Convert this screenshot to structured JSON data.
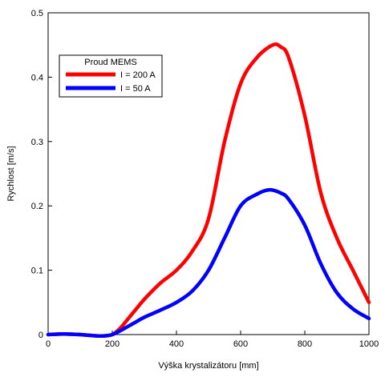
{
  "chart_data": {
    "type": "line",
    "xlabel": "Výška krystalizátoru [mm]",
    "ylabel": "Rychlost [m/s]",
    "xlim": [
      0,
      1000
    ],
    "ylim": [
      0,
      0.5
    ],
    "xticks": [
      0,
      200,
      400,
      600,
      800,
      1000
    ],
    "yticks": [
      0,
      0.1,
      0.2,
      0.3,
      0.4,
      0.5
    ],
    "xtick_labels": [
      "0",
      "200",
      "400",
      "600",
      "800",
      "1000"
    ],
    "ytick_labels": [
      "0",
      "0.1",
      "0.2",
      "0.3",
      "0.4",
      "0.5"
    ],
    "grid": false,
    "legend": {
      "title": "Proud MEMS",
      "placement": "upper-left"
    },
    "series": [
      {
        "name": "I = 200 A",
        "color": "#ff0000",
        "x": [
          0,
          50,
          100,
          150,
          175,
          200,
          225,
          250,
          275,
          300,
          350,
          400,
          450,
          500,
          550,
          600,
          650,
          700,
          725,
          750,
          800,
          850,
          900,
          950,
          1000
        ],
        "y": [
          0,
          0.001,
          0,
          -0.002,
          -0.002,
          0.0,
          0.01,
          0.025,
          0.04,
          0.055,
          0.08,
          0.1,
          0.13,
          0.18,
          0.3,
          0.39,
          0.43,
          0.45,
          0.447,
          0.43,
          0.34,
          0.22,
          0.15,
          0.1,
          0.05
        ]
      },
      {
        "name": "I = 50 A",
        "color": "#0000ff",
        "x": [
          0,
          50,
          100,
          150,
          175,
          200,
          225,
          250,
          275,
          300,
          350,
          400,
          450,
          500,
          550,
          600,
          650,
          690,
          725,
          750,
          800,
          850,
          900,
          950,
          1000
        ],
        "y": [
          0,
          0.001,
          0,
          -0.002,
          -0.002,
          0.0,
          0.006,
          0.013,
          0.02,
          0.027,
          0.038,
          0.05,
          0.068,
          0.1,
          0.15,
          0.2,
          0.218,
          0.225,
          0.22,
          0.21,
          0.17,
          0.11,
          0.065,
          0.04,
          0.025
        ]
      }
    ]
  }
}
